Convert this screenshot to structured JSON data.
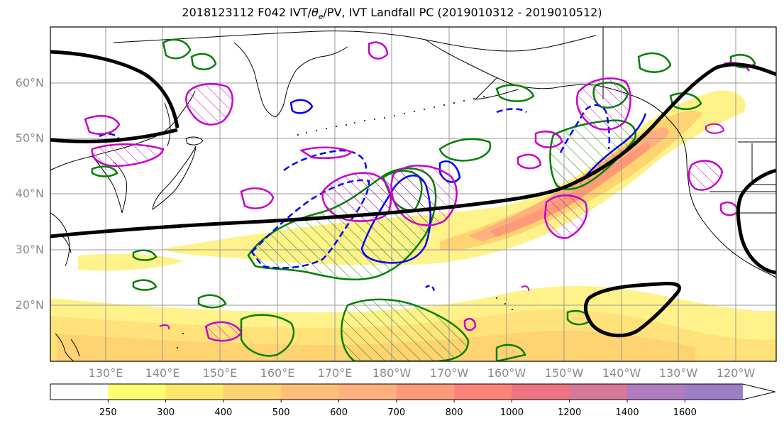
{
  "title": "2018123112 F042 IVT/θe/PV, IVT Landfall PC (2019010312 - 2019010512)",
  "title_parts": {
    "prefix": "2018123112 F042 IVT/",
    "theta": "θ",
    "sub": "e",
    "suffix": "/PV, IVT Landfall PC (2019010312 - 2019010512)"
  },
  "lat_labels": [
    "60°N",
    "50°N",
    "40°N",
    "30°N",
    "20°N"
  ],
  "lon_labels": [
    "130°E",
    "140°E",
    "150°E",
    "160°E",
    "170°E",
    "180°W",
    "170°W",
    "160°W",
    "150°W",
    "140°W",
    "130°W",
    "120°W"
  ],
  "colorbar": {
    "levels": [
      "250",
      "300",
      "400",
      "500",
      "600",
      "700",
      "800",
      "1000",
      "1200",
      "1400",
      "1600"
    ],
    "colors": [
      "#ffffff",
      "#ffff70",
      "#ffe76a",
      "#ffd36f",
      "#ffbf78",
      "#ffb07c",
      "#ff9a78",
      "#ff8278",
      "#f07382",
      "#d87898",
      "#b07cbf",
      "#9e7dc4"
    ]
  },
  "colors": {
    "background": "#ffffff",
    "grid": "#9a9a9a",
    "coast": "#000000",
    "jet": "#000000",
    "pv_contour": "#008000",
    "theta_solid": "#0000ff",
    "ivt_pc": "#c800c8"
  }
}
